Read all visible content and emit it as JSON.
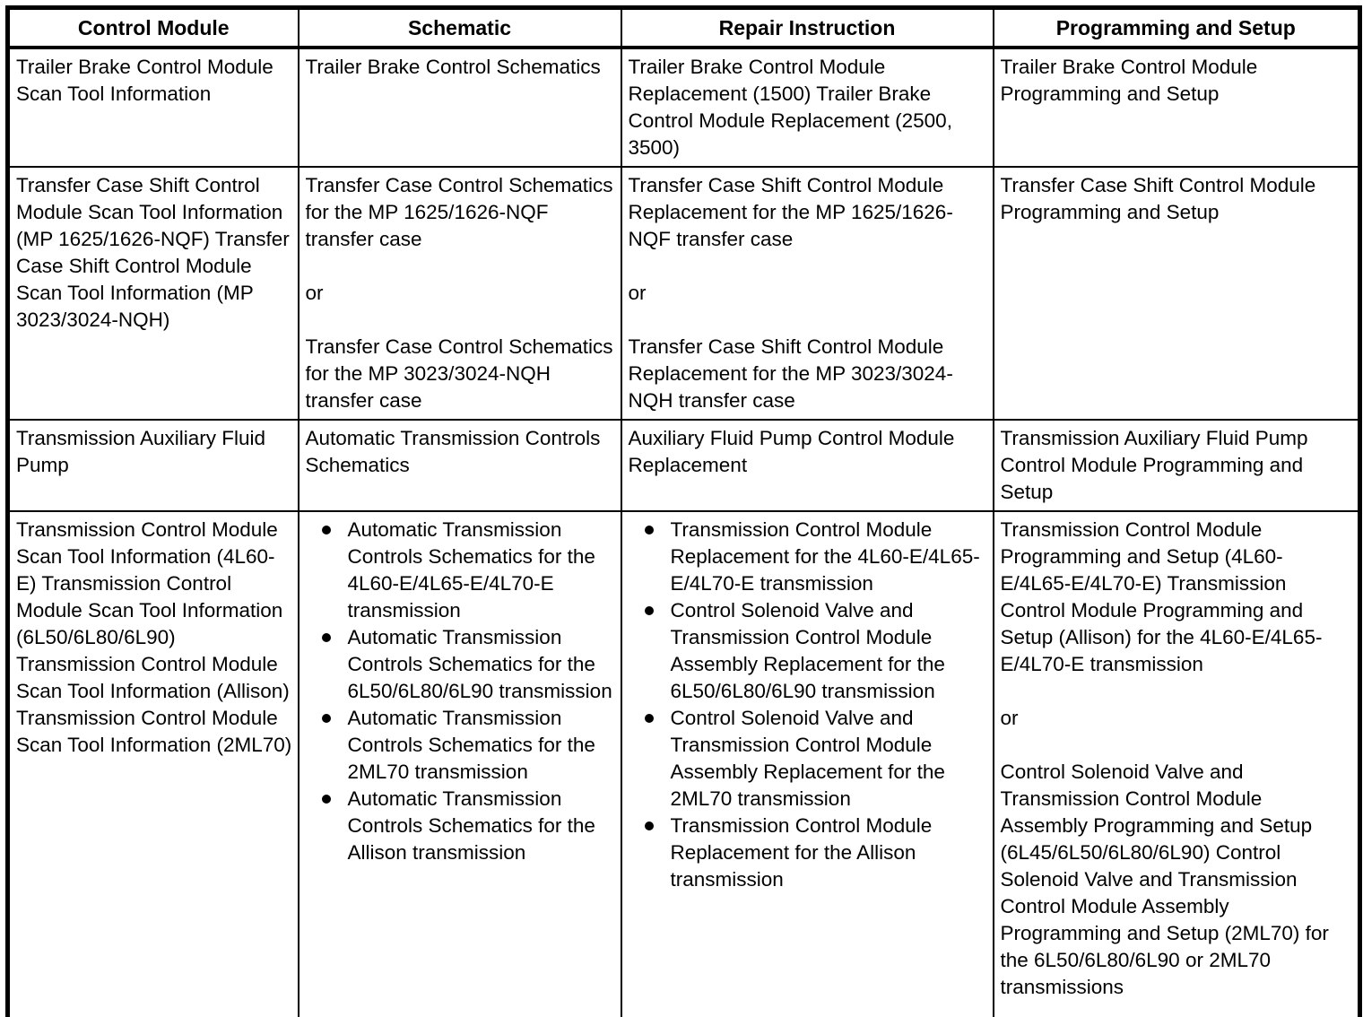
{
  "page": {
    "background_color": "#ffffff",
    "text_color": "#000000",
    "border_color": "#000000"
  },
  "table": {
    "columns": [
      "Control Module",
      "Schematic",
      "Repair Instruction",
      "Programming and Setup"
    ],
    "rows": [
      {
        "cells": [
          {
            "paragraphs": [
              "Trailer Brake Control Module Scan Tool Information"
            ]
          },
          {
            "paragraphs": [
              "Trailer Brake Control Schematics"
            ]
          },
          {
            "paragraphs": [
              "Trailer Brake Control Module Replacement (1500) Trailer Brake Control Module Replacement (2500, 3500)"
            ]
          },
          {
            "paragraphs": [
              "Trailer Brake Control Module Programming and Setup"
            ]
          }
        ]
      },
      {
        "cells": [
          {
            "paragraphs": [
              "Transfer Case Shift Control Module Scan Tool Information (MP 1625/1626-NQF) Transfer Case Shift Control Module Scan Tool Information (MP 3023/3024-NQH)"
            ]
          },
          {
            "paragraphs": [
              "Transfer Case Control Schematics for the MP 1625/1626-NQF transfer case",
              "or",
              "Transfer Case Control Schematics for the MP 3023/3024-NQH transfer case"
            ]
          },
          {
            "paragraphs": [
              "Transfer Case Shift Control Module Replacement for the MP 1625/1626-NQF transfer case",
              "or",
              "Transfer Case Shift Control Module Replacement for the MP 3023/3024-NQH transfer case"
            ]
          },
          {
            "paragraphs": [
              "Transfer Case Shift Control Module Programming and Setup"
            ]
          }
        ]
      },
      {
        "cells": [
          {
            "paragraphs": [
              "Transmission Auxiliary Fluid Pump"
            ]
          },
          {
            "paragraphs": [
              "Automatic Transmission Controls Schematics"
            ]
          },
          {
            "paragraphs": [
              "Auxiliary Fluid Pump Control Module Replacement"
            ]
          },
          {
            "paragraphs": [
              "Transmission Auxiliary Fluid Pump Control Module Programming and Setup"
            ]
          }
        ]
      },
      {
        "cells": [
          {
            "paragraphs": [
              "Transmission Control Module Scan Tool Information (4L60-E) Transmission Control Module Scan Tool Information (6L50/6L80/6L90) Transmission Control Module Scan Tool Information (Allison) Transmission Control Module Scan Tool Information (2ML70)"
            ]
          },
          {
            "bullets": [
              "Automatic Transmission Controls Schematics for the 4L60-E/4L65-E/4L70-E transmission",
              "Automatic Transmission Controls Schematics for the 6L50/6L80/6L90 transmission",
              "Automatic Transmission Controls Schematics for the 2ML70 transmission",
              "Automatic Transmission Controls Schematics for the Allison transmission"
            ]
          },
          {
            "bullets": [
              "Transmission Control Module Replacement for the 4L60-E/4L65-E/4L70-E transmission",
              "Control Solenoid Valve and Transmission Control Module Assembly Replacement for the 6L50/6L80/6L90 transmission",
              "Control Solenoid Valve and Transmission Control Module Assembly Replacement for the 2ML70 transmission",
              "Transmission Control Module Replacement for the Allison transmission"
            ]
          },
          {
            "paragraphs": [
              "Transmission Control Module Programming and Setup (4L60-E/4L65-E/4L70-E) Transmission Control Module Programming and Setup (Allison) for the 4L60-E/4L65-E/4L70-E transmission",
              "or",
              "Control Solenoid Valve and Transmission Control Module Assembly Programming and Setup (6L45/6L50/6L80/6L90) Control Solenoid Valve and Transmission Control Module Assembly Programming and Setup (2ML70) for the 6L50/6L80/6L90 or 2ML70 transmissions"
            ]
          }
        ]
      }
    ]
  }
}
